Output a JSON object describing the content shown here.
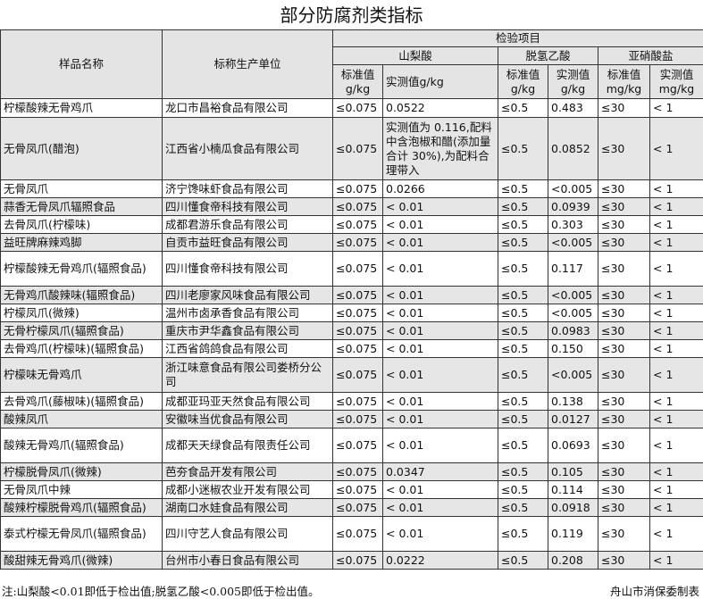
{
  "title": "部分防腐剂类指标",
  "headers": {
    "name": "样品名称",
    "maker": "标称生产单位",
    "group": "检验项目",
    "sorbic": "山梨酸",
    "dha": "脱氢乙酸",
    "nitrite": "亚硝酸盐",
    "std_gkg": "标准值g/kg",
    "measured_gkg": "实测值g/kg",
    "std_gkg2": "标准值g/kg",
    "measured_gkg2": "实测值g/kg",
    "std_mgkg": "标准值mg/kg",
    "measured_mgkg": "实测值mg/kg"
  },
  "rows": [
    [
      "柠檬酸辣无骨鸡爪",
      "龙口市昌裕食品有限公司",
      "≤0.075",
      "0.0522",
      "≤0.5",
      "0.483",
      "≤30",
      "< 1"
    ],
    [
      "无骨凤爪(醋泡)",
      "江西省小楠瓜食品有限公司",
      "≤0.075",
      "实测值为 0.116,配料中含泡椒和醋(添加量合计 30%),为配料合理带入",
      "≤0.5",
      "0.0852",
      "≤30",
      "< 1"
    ],
    [
      "无骨凤爪",
      "济宁馋味虾食品有限公司",
      "≤0.075",
      "0.0266",
      "≤0.5",
      "<0.005",
      "≤30",
      "< 1"
    ],
    [
      "蒜香无骨凤爪辐照食品",
      "四川懂食帝科技有限公司",
      "≤0.075",
      "< 0.01",
      "≤0.5",
      "0.0939",
      "≤30",
      "< 1"
    ],
    [
      "去骨凤爪(柠檬味)",
      "成都君游乐食品有限公司",
      "≤0.075",
      "< 0.01",
      "≤0.5",
      "0.303",
      "≤30",
      "< 1"
    ],
    [
      "益旺牌麻辣鸡脚",
      "自贡市益旺食品有限公司",
      "≤0.075",
      "< 0.01",
      "≤0.5",
      "<0.005",
      "≤30",
      "< 1"
    ],
    [
      "柠檬酸辣无骨鸡爪(辐照食品)",
      "四川懂食帝科技有限公司",
      "≤0.075",
      "< 0.01",
      "≤0.5",
      "0.117",
      "≤30",
      "< 1"
    ],
    [
      "无骨鸡爪酸辣味(辐照食品)",
      "四川老廖家风味食品有限公司",
      "≤0.075",
      "< 0.01",
      "≤0.5",
      "<0.005",
      "≤30",
      "< 1"
    ],
    [
      "柠檬凤爪(微辣)",
      "温州市卤承香食品有限公司",
      "≤0.075",
      "< 0.01",
      "≤0.5",
      "<0.005",
      "≤30",
      "< 1"
    ],
    [
      "无骨柠檬凤爪(辐照食品)",
      "重庆市尹华鑫食品有限公司",
      "≤0.075",
      "< 0.01",
      "≤0.5",
      "0.0983",
      "≤30",
      "< 1"
    ],
    [
      "去骨鸡爪(柠檬味)(辐照食品)",
      "江西省鸽鸽食品有限公司",
      "≤0.075",
      "< 0.01",
      "≤0.5",
      "0.150",
      "≤30",
      "< 1"
    ],
    [
      "柠檬味无骨鸡爪",
      "浙江味意食品有限公司娄桥分公司",
      "≤0.075",
      "< 0.01",
      "≤0.5",
      "<0.005",
      "≤30",
      "< 1"
    ],
    [
      "去骨鸡爪(藤椒味)(辐照食品)",
      "成都亚玛亚天然食品有限公司",
      "≤0.075",
      "< 0.01",
      "≤0.5",
      "0.138",
      "≤30",
      "< 1"
    ],
    [
      "酸辣凤爪",
      "安徽味当优食品有限公司",
      "≤0.075",
      "< 0.01",
      "≤0.5",
      "0.0127",
      "≤30",
      "< 1"
    ],
    [
      "酸辣无骨鸡爪(辐照食品)",
      "成都天天绿食品有限责任公司",
      "≤0.075",
      "< 0.01",
      "≤0.5",
      "0.0693",
      "≤30",
      "< 1"
    ],
    [
      "柠檬脱骨凤爪(微辣)",
      "芭夯食品开发有限公司",
      "≤0.075",
      "0.0347",
      "≤0.5",
      "0.105",
      "≤30",
      "< 1"
    ],
    [
      "无骨凤爪中辣",
      "成都小迷椒农业开发有限公司",
      "≤0.075",
      "< 0.01",
      "≤0.5",
      "0.114",
      "≤30",
      "< 1"
    ],
    [
      "酸辣柠檬脱骨鸡爪(辐照食品)",
      "湖南口水娃食品有限公司",
      "≤0.075",
      "< 0.01",
      "≤0.5",
      "0.0918",
      "≤30",
      "< 1"
    ],
    [
      "泰式柠檬无骨凤爪(辐照食品)",
      "四川守艺人食品有限公司",
      "≤0.075",
      "< 0.01",
      "≤0.5",
      "0.119",
      "≤30",
      "< 1"
    ],
    [
      "酸甜辣无骨鸡爪(微辣)",
      "台州市小春日食品有限公司",
      "≤0.075",
      "0.0222",
      "≤0.5",
      "0.208",
      "≤30",
      "< 1"
    ]
  ],
  "note": "注:山梨酸<0.01即低于检出值;脱氢乙酸<0.005即低于检出值。",
  "source": "舟山市消保委制表"
}
